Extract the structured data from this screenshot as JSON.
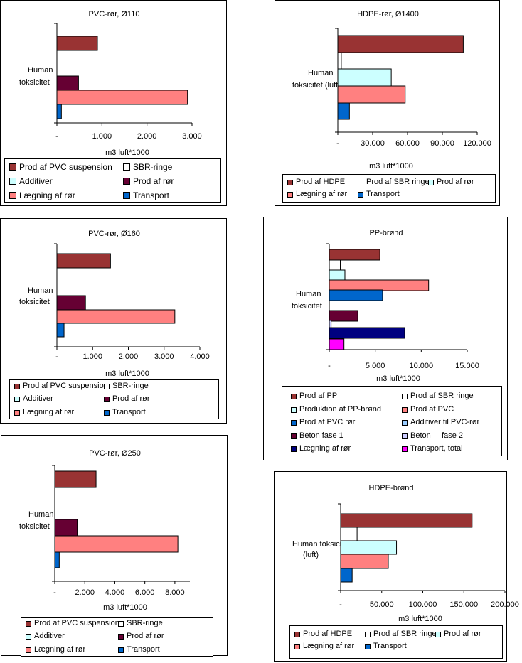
{
  "colors": {
    "prod_dark_red": "#993333",
    "white": "#ffffff",
    "light_cyan": "#ccffff",
    "plum": "#660033",
    "salmon": "#ff8080",
    "blue": "#0066cc",
    "light_blue": "#99ccff",
    "lilac": "#ccccff",
    "navy": "#000080",
    "magenta": "#ff00ff"
  },
  "chart_data": [
    {
      "id": "pvc110",
      "type": "bar",
      "orientation": "horizontal",
      "title": "PVC-rør, Ø110",
      "category": "Human toksicitet",
      "xlabel": "m3 luft*1000",
      "xlim": [
        0,
        3000
      ],
      "xticks": [
        "-",
        "1.000",
        "2.000",
        "3.000"
      ],
      "series": [
        {
          "name": "Prod af PVC suspension",
          "value": 900,
          "color": "#993333"
        },
        {
          "name": "SBR-ringe",
          "value": 0,
          "color": "#ffffff"
        },
        {
          "name": "Additiver",
          "value": 0,
          "color": "#ccffff"
        },
        {
          "name": "Prod af rør",
          "value": 480,
          "color": "#660033"
        },
        {
          "name": "Lægning af rør",
          "value": 2900,
          "color": "#ff8080"
        },
        {
          "name": "Transport",
          "value": 100,
          "color": "#0066cc"
        }
      ]
    },
    {
      "id": "hdpe1400",
      "type": "bar",
      "orientation": "horizontal",
      "title": "HDPE-rør, Ø1400",
      "category": "Human toksicitet (luft)",
      "xlabel": "m3 luft*1000",
      "xlim": [
        0,
        120000
      ],
      "xticks": [
        "-",
        "30.000",
        "60.000",
        "90.000",
        "120.000"
      ],
      "series": [
        {
          "name": "Prod af HDPE",
          "value": 108000,
          "color": "#993333"
        },
        {
          "name": "Prod af SBR ringe",
          "value": 3000,
          "color": "#ffffff"
        },
        {
          "name": "Prod af rør",
          "value": 46000,
          "color": "#ccffff"
        },
        {
          "name": "Lægning af rør",
          "value": 58000,
          "color": "#ff8080"
        },
        {
          "name": "Transport",
          "value": 10000,
          "color": "#0066cc"
        }
      ]
    },
    {
      "id": "pvc160",
      "type": "bar",
      "orientation": "horizontal",
      "title": "PVC-rør, Ø160",
      "category": "Human toksicitet",
      "xlabel": "m3 luft*1000",
      "xlim": [
        0,
        4000
      ],
      "xticks": [
        "-",
        "1.000",
        "2.000",
        "3.000",
        "4.000"
      ],
      "series": [
        {
          "name": "Prod af PVC suspension",
          "value": 1500,
          "color": "#993333"
        },
        {
          "name": "SBR-ringe",
          "value": 0,
          "color": "#ffffff"
        },
        {
          "name": "Additiver",
          "value": 0,
          "color": "#ccffff"
        },
        {
          "name": "Prod af rør",
          "value": 800,
          "color": "#660033"
        },
        {
          "name": "Lægning af rør",
          "value": 3300,
          "color": "#ff8080"
        },
        {
          "name": "Transport",
          "value": 200,
          "color": "#0066cc"
        }
      ]
    },
    {
      "id": "ppbrond",
      "type": "bar",
      "orientation": "horizontal",
      "title": "PP-brønd",
      "category": "Human toksicitet",
      "xlabel": "m3 luft*1000",
      "xlim": [
        0,
        15000
      ],
      "xticks": [
        "-",
        "5.000",
        "10.000",
        "15.000"
      ],
      "series": [
        {
          "name": "Prod af PP",
          "value": 5500,
          "color": "#993333"
        },
        {
          "name": "Prod af SBR ringe",
          "value": 1200,
          "color": "#ffffff"
        },
        {
          "name": "Produktion af PP-brønd",
          "value": 1700,
          "color": "#ccffff"
        },
        {
          "name": "Prod af PVC",
          "value": 10800,
          "color": "#ff8080"
        },
        {
          "name": "Prod af PVC rør",
          "value": 5800,
          "color": "#0066cc"
        },
        {
          "name": "Additiver til PVC-rør",
          "value": 0,
          "color": "#99ccff"
        },
        {
          "name": "Beton fase 1",
          "value": 3100,
          "color": "#660033"
        },
        {
          "name": "Beton     fase 2",
          "value": 200,
          "color": "#ccccff"
        },
        {
          "name": "Lægning af rør",
          "value": 8200,
          "color": "#000080"
        },
        {
          "name": "Transport, total",
          "value": 1600,
          "color": "#ff00ff"
        }
      ]
    },
    {
      "id": "pvc250",
      "type": "bar",
      "orientation": "horizontal",
      "title": "PVC-rør, Ø250",
      "category": "Human toksicitet",
      "xlabel": "m3 luft*1000",
      "xlim": [
        0,
        9000
      ],
      "xticks": [
        "-",
        "2.000",
        "4.000",
        "6.000",
        "8.000"
      ],
      "series": [
        {
          "name": "Prod af PVC suspension",
          "value": 2750,
          "color": "#993333"
        },
        {
          "name": "SBR-ringe",
          "value": 0,
          "color": "#ffffff"
        },
        {
          "name": "Additiver",
          "value": 0,
          "color": "#ccffff"
        },
        {
          "name": "Prod af rør",
          "value": 1500,
          "color": "#660033"
        },
        {
          "name": "Lægning af rør",
          "value": 8200,
          "color": "#ff8080"
        },
        {
          "name": "Transport",
          "value": 300,
          "color": "#0066cc"
        }
      ]
    },
    {
      "id": "hdpebrond",
      "type": "bar",
      "orientation": "horizontal",
      "title": "HDPE-brønd",
      "category": "Human toksicitet (luft)",
      "xlabel": "m3 luft*1000",
      "xlim": [
        0,
        200000
      ],
      "xticks": [
        "-",
        "50.000",
        "100.000",
        "150.000",
        "200.000"
      ],
      "series": [
        {
          "name": "Prod af HDPE",
          "value": 160000,
          "color": "#993333"
        },
        {
          "name": "Prod af SBR ringe",
          "value": 20000,
          "color": "#ffffff"
        },
        {
          "name": "Prod af rør",
          "value": 68000,
          "color": "#ccffff"
        },
        {
          "name": "Lægning af rør",
          "value": 58000,
          "color": "#ff8080"
        },
        {
          "name": "Transport",
          "value": 14000,
          "color": "#0066cc"
        }
      ]
    }
  ]
}
